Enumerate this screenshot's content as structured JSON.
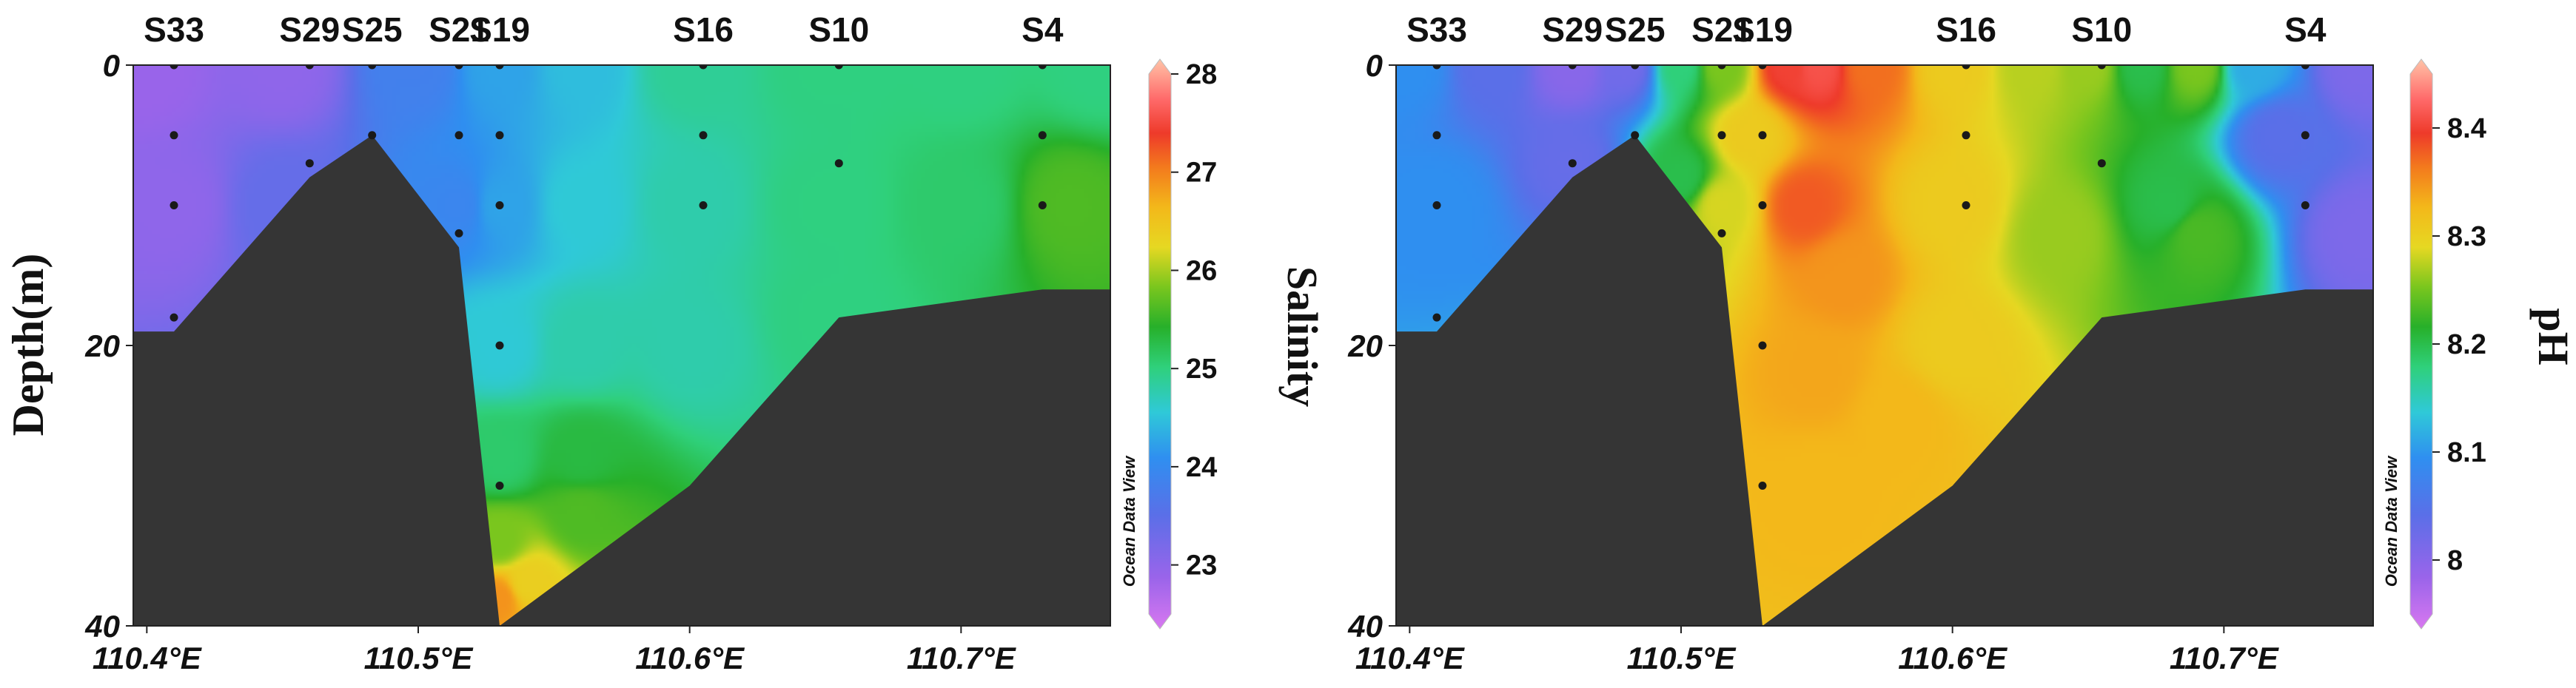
{
  "chart_data": [
    {
      "type": "heatmap",
      "subtype": "ocean-section",
      "stations": [
        {
          "name": "S33",
          "lon": 110.41
        },
        {
          "name": "S29",
          "lon": 110.46
        },
        {
          "name": "S25",
          "lon": 110.483
        },
        {
          "name": "S21",
          "lon": 110.515
        },
        {
          "name": "S19",
          "lon": 110.53
        },
        {
          "name": "S16",
          "lon": 110.605
        },
        {
          "name": "S10",
          "lon": 110.655
        },
        {
          "name": "S4",
          "lon": 110.73
        }
      ],
      "xlim": [
        110.395,
        110.755
      ],
      "ylim": [
        0,
        40
      ],
      "x_ticks": [
        110.4,
        110.5,
        110.6,
        110.7
      ],
      "x_tick_labels": [
        "110.4°E",
        "110.5°E",
        "110.6°E",
        "110.7°E"
      ],
      "y_ticks": [
        0,
        20,
        40
      ],
      "y_tick_labels": [
        "0",
        "20",
        "40"
      ],
      "ylabel": "Depth(m)",
      "colorbar_title": "Salinity",
      "colorbar_range": [
        22.5,
        28
      ],
      "colorbar_ticks": [
        23,
        24,
        25,
        26,
        27,
        28
      ],
      "watermark": "Ocean Data View",
      "seafloor": [
        [
          110.395,
          19
        ],
        [
          110.41,
          19
        ],
        [
          110.46,
          8
        ],
        [
          110.483,
          5
        ],
        [
          110.515,
          13
        ],
        [
          110.53,
          40
        ],
        [
          110.6,
          30
        ],
        [
          110.655,
          18
        ],
        [
          110.73,
          16
        ],
        [
          110.755,
          16
        ]
      ],
      "sample_points": [
        [
          110.41,
          0
        ],
        [
          110.41,
          5
        ],
        [
          110.41,
          10
        ],
        [
          110.41,
          18
        ],
        [
          110.46,
          0
        ],
        [
          110.46,
          7
        ],
        [
          110.483,
          0
        ],
        [
          110.483,
          5
        ],
        [
          110.515,
          0
        ],
        [
          110.515,
          5
        ],
        [
          110.515,
          12
        ],
        [
          110.53,
          0
        ],
        [
          110.53,
          5
        ],
        [
          110.53,
          10
        ],
        [
          110.53,
          20
        ],
        [
          110.53,
          30
        ],
        [
          110.605,
          0
        ],
        [
          110.605,
          5
        ],
        [
          110.605,
          10
        ],
        [
          110.655,
          0
        ],
        [
          110.655,
          7
        ],
        [
          110.73,
          0
        ],
        [
          110.73,
          5
        ],
        [
          110.73,
          10
        ]
      ],
      "field_knots": [
        [
          110.4,
          0,
          23
        ],
        [
          110.45,
          0,
          23.1
        ],
        [
          110.5,
          0,
          23.9
        ],
        [
          110.53,
          0,
          24.3
        ],
        [
          110.56,
          0,
          24.5
        ],
        [
          110.6,
          0,
          24.9
        ],
        [
          110.65,
          0,
          25.0
        ],
        [
          110.7,
          0,
          25.0
        ],
        [
          110.75,
          0,
          25.0
        ],
        [
          110.41,
          10,
          23.1
        ],
        [
          110.45,
          10,
          23.5
        ],
        [
          110.515,
          10,
          24.0
        ],
        [
          110.53,
          10,
          24.3
        ],
        [
          110.56,
          10,
          24.6
        ],
        [
          110.6,
          10,
          24.8
        ],
        [
          110.65,
          10,
          25.0
        ],
        [
          110.7,
          10,
          25.1
        ],
        [
          110.74,
          10,
          25.6
        ],
        [
          110.53,
          20,
          24.6
        ],
        [
          110.56,
          20,
          24.8
        ],
        [
          110.6,
          20,
          24.8
        ],
        [
          110.65,
          18,
          25.0
        ],
        [
          110.53,
          28,
          25.1
        ],
        [
          110.56,
          28,
          25.3
        ],
        [
          110.53,
          34,
          25.8
        ],
        [
          110.56,
          32,
          25.6
        ],
        [
          110.53,
          38,
          26.8
        ],
        [
          110.54,
          37,
          26.3
        ]
      ]
    },
    {
      "type": "heatmap",
      "subtype": "ocean-section",
      "stations": [
        {
          "name": "S33",
          "lon": 110.41
        },
        {
          "name": "S29",
          "lon": 110.46
        },
        {
          "name": "S25",
          "lon": 110.483
        },
        {
          "name": "S21",
          "lon": 110.515
        },
        {
          "name": "S19",
          "lon": 110.53
        },
        {
          "name": "S16",
          "lon": 110.605
        },
        {
          "name": "S10",
          "lon": 110.655
        },
        {
          "name": "S4",
          "lon": 110.73
        }
      ],
      "xlim": [
        110.395,
        110.755
      ],
      "ylim": [
        0,
        40
      ],
      "x_ticks": [
        110.4,
        110.5,
        110.6,
        110.7
      ],
      "x_tick_labels": [
        "110.4°E",
        "110.5°E",
        "110.6°E",
        "110.7°E"
      ],
      "y_ticks": [
        0,
        20,
        40
      ],
      "y_tick_labels": [
        "0",
        "20",
        "40"
      ],
      "ylabel": "",
      "colorbar_title": "pH",
      "colorbar_range": [
        7.95,
        8.45
      ],
      "colorbar_ticks": [
        8.0,
        8.1,
        8.2,
        8.3,
        8.4
      ],
      "colorbar_tick_labels": [
        "8",
        "8.1",
        "8.2",
        "8.3",
        "8.4"
      ],
      "watermark": "Ocean Data View",
      "seafloor": [
        [
          110.395,
          19
        ],
        [
          110.41,
          19
        ],
        [
          110.46,
          8
        ],
        [
          110.483,
          5
        ],
        [
          110.515,
          13
        ],
        [
          110.53,
          40
        ],
        [
          110.6,
          30
        ],
        [
          110.655,
          18
        ],
        [
          110.73,
          16
        ],
        [
          110.755,
          16
        ]
      ],
      "sample_points": [
        [
          110.41,
          0
        ],
        [
          110.41,
          5
        ],
        [
          110.41,
          10
        ],
        [
          110.41,
          18
        ],
        [
          110.46,
          0
        ],
        [
          110.46,
          7
        ],
        [
          110.483,
          0
        ],
        [
          110.483,
          5
        ],
        [
          110.515,
          0
        ],
        [
          110.515,
          5
        ],
        [
          110.515,
          12
        ],
        [
          110.53,
          0
        ],
        [
          110.53,
          5
        ],
        [
          110.53,
          10
        ],
        [
          110.53,
          20
        ],
        [
          110.53,
          30
        ],
        [
          110.605,
          0
        ],
        [
          110.605,
          5
        ],
        [
          110.605,
          10
        ],
        [
          110.655,
          0
        ],
        [
          110.655,
          7
        ],
        [
          110.73,
          0
        ],
        [
          110.73,
          5
        ],
        [
          110.73,
          10
        ]
      ],
      "field_knots": [
        [
          110.4,
          0,
          8.1
        ],
        [
          110.41,
          10,
          8.1
        ],
        [
          110.43,
          0,
          8.05
        ],
        [
          110.46,
          0,
          8.01
        ],
        [
          110.48,
          0,
          8.03
        ],
        [
          110.46,
          7,
          8.04
        ],
        [
          110.5,
          0,
          8.18
        ],
        [
          110.5,
          8,
          8.2
        ],
        [
          110.515,
          0,
          8.25
        ],
        [
          110.515,
          10,
          8.28
        ],
        [
          110.525,
          5,
          8.3
        ],
        [
          110.54,
          0,
          8.39
        ],
        [
          110.55,
          0,
          8.4
        ],
        [
          110.57,
          0,
          8.36
        ],
        [
          110.545,
          10,
          8.37
        ],
        [
          110.56,
          15,
          8.34
        ],
        [
          110.55,
          22,
          8.33
        ],
        [
          110.55,
          30,
          8.32
        ],
        [
          110.58,
          25,
          8.32
        ],
        [
          110.6,
          0,
          8.3
        ],
        [
          110.6,
          10,
          8.3
        ],
        [
          110.6,
          20,
          8.3
        ],
        [
          110.63,
          0,
          8.27
        ],
        [
          110.65,
          0,
          8.26
        ],
        [
          110.64,
          12,
          8.26
        ],
        [
          110.67,
          0,
          8.2
        ],
        [
          110.68,
          10,
          8.2
        ],
        [
          110.69,
          0,
          8.25
        ],
        [
          110.69,
          12,
          8.23
        ],
        [
          110.71,
          0,
          8.12
        ],
        [
          110.72,
          5,
          8.05
        ],
        [
          110.75,
          0,
          8.02
        ],
        [
          110.75,
          12,
          8.02
        ]
      ]
    }
  ]
}
